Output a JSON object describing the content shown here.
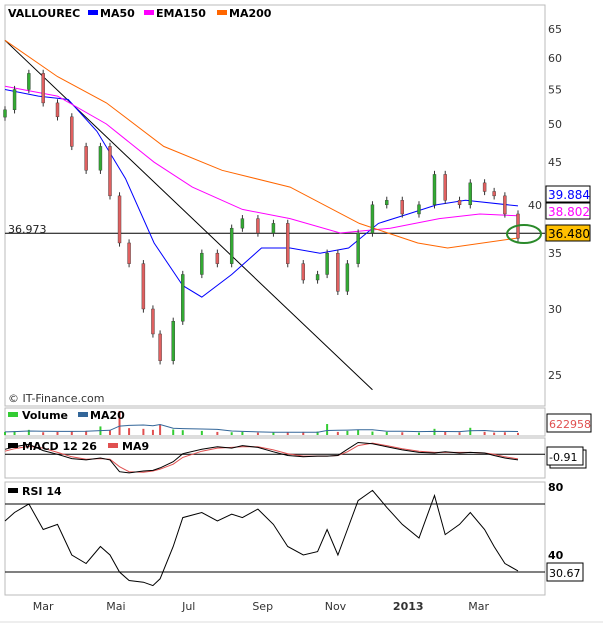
{
  "chart_data": {
    "type": "candlestick",
    "title": "VALLOUREC",
    "scale": "log",
    "ylim": [
      25,
      65
    ],
    "y_ticks": [
      25,
      30,
      35,
      40,
      45,
      50,
      55,
      60,
      65
    ],
    "x_ticks": [
      {
        "label": "Mar",
        "date": "2012-03-01",
        "bold": false
      },
      {
        "label": "Mai",
        "date": "2012-05-01",
        "bold": false
      },
      {
        "label": "Jul",
        "date": "2012-07-01",
        "bold": false
      },
      {
        "label": "Sep",
        "date": "2012-09-01",
        "bold": false
      },
      {
        "label": "Nov",
        "date": "2012-11-01",
        "bold": false
      },
      {
        "label": "2013",
        "date": "2013-01-01",
        "bold": true
      },
      {
        "label": "Mar",
        "date": "2013-03-01",
        "bold": false
      }
    ],
    "xlim": [
      "2012-01-29",
      "2013-04-20"
    ],
    "dates": [
      "2012-01-29",
      "2012-02-06",
      "2012-02-18",
      "2012-03-01",
      "2012-03-13",
      "2012-03-25",
      "2012-04-06",
      "2012-04-18",
      "2012-04-26",
      "2012-05-04",
      "2012-05-12",
      "2012-05-24",
      "2012-06-01",
      "2012-06-07",
      "2012-06-18",
      "2012-06-26",
      "2012-07-12",
      "2012-07-25",
      "2012-08-06",
      "2012-08-15",
      "2012-08-28",
      "2012-09-10",
      "2012-09-22",
      "2012-10-05",
      "2012-10-17",
      "2012-10-25",
      "2012-11-03",
      "2012-11-11",
      "2012-11-20",
      "2012-12-02",
      "2012-12-14",
      "2012-12-27",
      "2013-01-10",
      "2013-01-23",
      "2013-02-01",
      "2013-02-13",
      "2013-02-22",
      "2013-03-06",
      "2013-03-14",
      "2013-03-23",
      "2013-04-03"
    ],
    "close": [
      52,
      55,
      57.5,
      53,
      51,
      47,
      44,
      47,
      41,
      36,
      34,
      30,
      28,
      26,
      29,
      33,
      35,
      34,
      37.5,
      38.5,
      37,
      38,
      34,
      32.5,
      33,
      35,
      31.5,
      34,
      37,
      40,
      40.5,
      39,
      40,
      43.5,
      40.5,
      40,
      42.5,
      41.5,
      41,
      39,
      36.48
    ],
    "legend": [
      {
        "name": "MA50",
        "color": "#0000ff"
      },
      {
        "name": "EMA150",
        "color": "#ff00ff"
      },
      {
        "name": "MA200",
        "color": "#ff6600"
      }
    ],
    "overlays": {
      "MA50": {
        "dates": [
          "2012-01-29",
          "2012-02-26",
          "2012-03-22",
          "2012-04-15",
          "2012-05-09",
          "2012-06-02",
          "2012-06-26",
          "2012-07-12",
          "2012-08-06",
          "2012-08-31",
          "2012-09-24",
          "2012-10-19",
          "2012-11-12",
          "2012-12-07",
          "2013-01-01",
          "2013-01-25",
          "2013-02-18",
          "2013-04-03"
        ],
        "values": [
          55,
          54,
          53.5,
          49,
          43,
          36,
          32,
          31,
          33,
          35.5,
          35.5,
          35,
          35.5,
          38,
          39,
          40,
          40.5,
          39.884
        ]
      },
      "EMA150": {
        "dates": [
          "2012-01-29",
          "2012-03-13",
          "2012-04-23",
          "2012-06-02",
          "2012-07-04",
          "2012-08-15",
          "2012-09-24",
          "2012-11-05",
          "2012-12-17",
          "2013-01-27",
          "2013-03-02",
          "2013-04-03"
        ],
        "values": [
          55.5,
          54,
          50,
          45,
          42,
          39.5,
          38.5,
          37,
          37.5,
          38.5,
          39,
          38.802
        ]
      },
      "MA200": {
        "dates": [
          "2012-01-29",
          "2012-03-13",
          "2012-04-23",
          "2012-06-10",
          "2012-07-29",
          "2012-09-24",
          "2012-11-21",
          "2013-01-09",
          "2013-02-03",
          "2013-04-03"
        ],
        "values": [
          63,
          57,
          53,
          47,
          44,
          42,
          38,
          36,
          35.5,
          36.5
        ]
      }
    },
    "trendline": {
      "from": {
        "date": "2012-01-29",
        "value": 63
      },
      "to": {
        "date": "2012-12-02",
        "value": 24
      }
    },
    "hline": {
      "value": 36.973,
      "label": "36.973"
    },
    "last_labels": [
      {
        "text": "39.884",
        "color": "#0000ff",
        "bg": "#ffffff"
      },
      {
        "text": "38.802",
        "color": "#ff00ff",
        "bg": "#ffffff"
      },
      {
        "text": "36.480",
        "color": "#000000",
        "bg": "#ffc000"
      }
    ],
    "copyright": "© IT-Finance.com",
    "volume": {
      "legend": [
        "Volume",
        "MA20"
      ],
      "values": [
        900000,
        1100000,
        1500000,
        800000,
        900000,
        1000000,
        1200000,
        2500000,
        1300000,
        7000000,
        2000000,
        1800000,
        1500000,
        3000000,
        1600000,
        1400000,
        1200000,
        900000,
        800000,
        900000,
        700000,
        700000,
        800000,
        900000,
        1000000,
        3200000,
        900000,
        1200000,
        1500000,
        1000000,
        900000,
        800000,
        700000,
        1800000,
        900000,
        800000,
        2100000,
        900000,
        700000,
        800000,
        622958
      ],
      "last_label": "622958",
      "up_color": "#33cc33",
      "down_color": "#e05050",
      "ma_color": "#336699"
    },
    "macd": {
      "legend": [
        "MACD 12 26",
        "MA9"
      ],
      "ylim": [
        -3.5,
        2.3
      ],
      "macd": [
        0.8,
        1.2,
        1.6,
        0.6,
        0,
        -0.7,
        -0.9,
        -0.6,
        -0.9,
        -2.8,
        -3.0,
        -2.7,
        -2.6,
        -2.2,
        -1.2,
        0.1,
        0.8,
        1.2,
        1.0,
        1.4,
        1.1,
        0.4,
        -0.2,
        -0.4,
        -0.3,
        -0.3,
        -0.2,
        0.8,
        1.9,
        1.7,
        1.2,
        0.7,
        0.3,
        0.2,
        0.4,
        0.2,
        0.3,
        0.2,
        -0.2,
        -0.6,
        -0.91
      ],
      "signal": [
        0.5,
        0.9,
        1.3,
        1.0,
        0.3,
        -0.4,
        -0.8,
        -0.7,
        -0.8,
        -2.0,
        -2.8,
        -2.9,
        -2.7,
        -2.4,
        -1.6,
        -0.5,
        0.5,
        1.0,
        1.1,
        1.2,
        1.2,
        0.7,
        0.1,
        -0.3,
        -0.3,
        -0.3,
        -0.2,
        0.4,
        1.4,
        1.8,
        1.4,
        0.9,
        0.5,
        0.3,
        0.3,
        0.3,
        0.3,
        0.2,
        0.0,
        -0.4,
        -0.75
      ],
      "last_label": "-0.91",
      "signal_color": "#e05050"
    },
    "rsi": {
      "legend": "RSI 14",
      "ylim": [
        16,
        83
      ],
      "ticks": [
        80,
        40
      ],
      "levels": [
        70,
        30
      ],
      "values": [
        60,
        65,
        70,
        55,
        58,
        40,
        35,
        45,
        40,
        30,
        25,
        24,
        22,
        26,
        45,
        62,
        65,
        60,
        64,
        62,
        67,
        58,
        45,
        40,
        42,
        55,
        40,
        55,
        72,
        78,
        68,
        58,
        50,
        75,
        52,
        58,
        65,
        55,
        45,
        35,
        30.67
      ],
      "last_label": "30.67"
    }
  }
}
